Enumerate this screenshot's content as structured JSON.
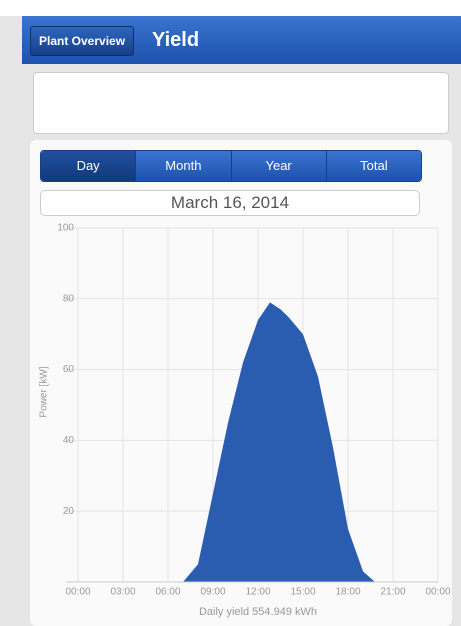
{
  "header": {
    "back": "Plant Overview",
    "title": "Yield"
  },
  "tabs": [
    "Day",
    "Month",
    "Year",
    "Total"
  ],
  "date": "March 16, 2014",
  "chart_data": {
    "type": "area",
    "ylabel": "Power [kW]",
    "footer": "Daily yield 554.949 kWh",
    "color": "#2a5db0",
    "x": [
      7,
      8,
      9,
      10,
      11,
      12,
      12.8,
      13.5,
      14,
      15,
      16,
      17,
      18,
      19,
      19.8
    ],
    "values": [
      0,
      5,
      25,
      45,
      62,
      74,
      79,
      77,
      75,
      70,
      58,
      38,
      15,
      3,
      0
    ],
    "xlim": [
      0,
      24
    ],
    "xticks": [
      {
        "value": 0,
        "label": "00:00"
      },
      {
        "value": 3,
        "label": "03:00"
      },
      {
        "value": 6,
        "label": "06:00"
      },
      {
        "value": 9,
        "label": "09:00"
      },
      {
        "value": 12,
        "label": "12:00"
      },
      {
        "value": 15,
        "label": "15:00"
      },
      {
        "value": 18,
        "label": "18:00"
      },
      {
        "value": 21,
        "label": "21:00"
      },
      {
        "value": 24,
        "label": "00:00"
      }
    ],
    "ylim": [
      0,
      100
    ],
    "yticks": [
      20,
      40,
      60,
      80,
      100
    ],
    "grid": true
  }
}
